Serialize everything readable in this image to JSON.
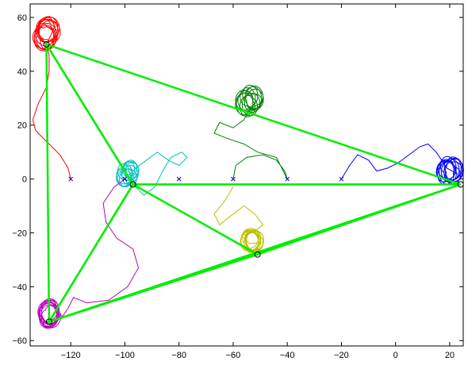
{
  "chart_data": {
    "type": "line",
    "title": "",
    "xlabel": "",
    "ylabel": "",
    "xlim": [
      -135,
      25
    ],
    "ylim": [
      -62,
      65
    ],
    "xticks": [
      -120,
      -100,
      -80,
      -60,
      -40,
      -20,
      0,
      20
    ],
    "yticks": [
      -60,
      -40,
      -20,
      0,
      20,
      40,
      60
    ],
    "xtick_labels": [
      "−120",
      "−100",
      "−80",
      "−60",
      "−40",
      "−20",
      "0",
      "20"
    ],
    "ytick_labels": [
      "−60",
      "−40",
      "−20",
      "0",
      "20",
      "40",
      "60"
    ],
    "grid": false,
    "legend": "none",
    "start_markers": {
      "marker": "x",
      "color": "#0000cc",
      "points": [
        [
          -120,
          0
        ],
        [
          -100,
          0
        ],
        [
          -80,
          0
        ],
        [
          -60,
          0
        ],
        [
          -40,
          0
        ],
        [
          -20,
          0
        ]
      ]
    },
    "trajectories": [
      {
        "color": "#ff0000",
        "start": [
          -120,
          0
        ],
        "path": [
          [
            -120,
            0
          ],
          [
            -121,
            4
          ],
          [
            -124,
            9
          ],
          [
            -129,
            14
          ],
          [
            -133,
            18
          ],
          [
            -134,
            22
          ],
          [
            -132,
            28
          ],
          [
            -129,
            34
          ],
          [
            -128,
            40
          ],
          [
            -128,
            46
          ],
          [
            -129,
            50
          ]
        ],
        "orbit": {
          "center": [
            -129,
            54
          ],
          "radius": 5.5,
          "loops": 11
        }
      },
      {
        "color": "#00bfbf",
        "start": [
          -100,
          0
        ],
        "path": [
          [
            -100,
            0
          ],
          [
            -96,
            4
          ],
          [
            -92,
            7
          ],
          [
            -88,
            10
          ],
          [
            -84,
            7
          ],
          [
            -80,
            5
          ],
          [
            -77,
            8
          ],
          [
            -79,
            10
          ],
          [
            -83,
            8
          ],
          [
            -86,
            3
          ],
          [
            -89,
            -3
          ],
          [
            -93,
            -6
          ],
          [
            -96,
            -3
          ],
          [
            -97,
            0
          ]
        ],
        "orbit": {
          "center": [
            -99,
            2
          ],
          "radius": 4,
          "loops": 10
        }
      },
      {
        "color": "#007f00",
        "start": [
          -60,
          0
        ],
        "path": [
          [
            -60,
            0
          ],
          [
            -59,
            5
          ],
          [
            -55,
            8
          ],
          [
            -49,
            9
          ],
          [
            -44,
            7
          ],
          [
            -41,
            3
          ],
          [
            -40,
            0
          ],
          [
            -44,
            8
          ],
          [
            -51,
            10
          ],
          [
            -56,
            13
          ],
          [
            -62,
            15
          ],
          [
            -67,
            17
          ],
          [
            -65,
            21
          ],
          [
            -60,
            19
          ],
          [
            -56,
            22
          ],
          [
            -54,
            26
          ]
        ],
        "orbit": {
          "center": [
            -54,
            29
          ],
          "radius": 5,
          "loops": 10
        }
      },
      {
        "color": "#0000ff",
        "start": [
          -20,
          0
        ],
        "path": [
          [
            -20,
            0
          ],
          [
            -17,
            5
          ],
          [
            -14,
            9
          ],
          [
            -10,
            7
          ],
          [
            -7,
            3
          ],
          [
            -3,
            4
          ],
          [
            1,
            6
          ],
          [
            5,
            9
          ],
          [
            9,
            12
          ],
          [
            12,
            13
          ],
          [
            15,
            10
          ],
          [
            17,
            7
          ],
          [
            19,
            4
          ]
        ],
        "orbit": {
          "center": [
            20,
            3
          ],
          "radius": 5,
          "loops": 10
        }
      },
      {
        "color": "#bfbf00",
        "start": [
          -60,
          -3
        ],
        "path": [
          [
            -60,
            -3
          ],
          [
            -63,
            -8
          ],
          [
            -67,
            -13
          ],
          [
            -65,
            -17
          ],
          [
            -60,
            -13
          ],
          [
            -56,
            -10
          ],
          [
            -52,
            -13
          ],
          [
            -49,
            -17
          ],
          [
            -53,
            -20
          ],
          [
            -57,
            -21
          ],
          [
            -54,
            -24
          ]
        ],
        "orbit": {
          "center": [
            -53,
            -23
          ],
          "radius": 4.5,
          "loops": 10
        }
      },
      {
        "color": "#bf00bf",
        "start": [
          -100,
          0
        ],
        "path": [
          [
            -100,
            0
          ],
          [
            -104,
            -3
          ],
          [
            -108,
            -9
          ],
          [
            -107,
            -16
          ],
          [
            -103,
            -22
          ],
          [
            -97,
            -26
          ],
          [
            -95,
            -33
          ],
          [
            -99,
            -40
          ],
          [
            -106,
            -45
          ],
          [
            -114,
            -46
          ],
          [
            -119,
            -44
          ],
          [
            -121,
            -48
          ],
          [
            -123,
            -51
          ]
        ],
        "orbit": {
          "center": [
            -128,
            -50
          ],
          "radius": 5,
          "loops": 11
        }
      }
    ],
    "triangles": {
      "color": "#00ee00",
      "sets": [
        [
          [
            -129,
            50
          ],
          [
            24,
            -2
          ],
          [
            -97,
            -2
          ]
        ],
        [
          [
            -97,
            -2
          ],
          [
            -128,
            -53
          ],
          [
            -51,
            -28
          ]
        ],
        [
          [
            -51,
            -28
          ],
          [
            24,
            -2
          ],
          [
            -128,
            -53
          ]
        ],
        [
          [
            -129,
            50
          ],
          [
            -97,
            -2
          ],
          [
            -128,
            -53
          ]
        ]
      ]
    },
    "end_markers": {
      "marker": "o",
      "color": "#000000",
      "points": [
        [
          24,
          -2
        ],
        [
          -97,
          -2
        ],
        [
          -51,
          -28
        ],
        [
          -128,
          -53
        ],
        [
          -129,
          50
        ]
      ]
    }
  }
}
